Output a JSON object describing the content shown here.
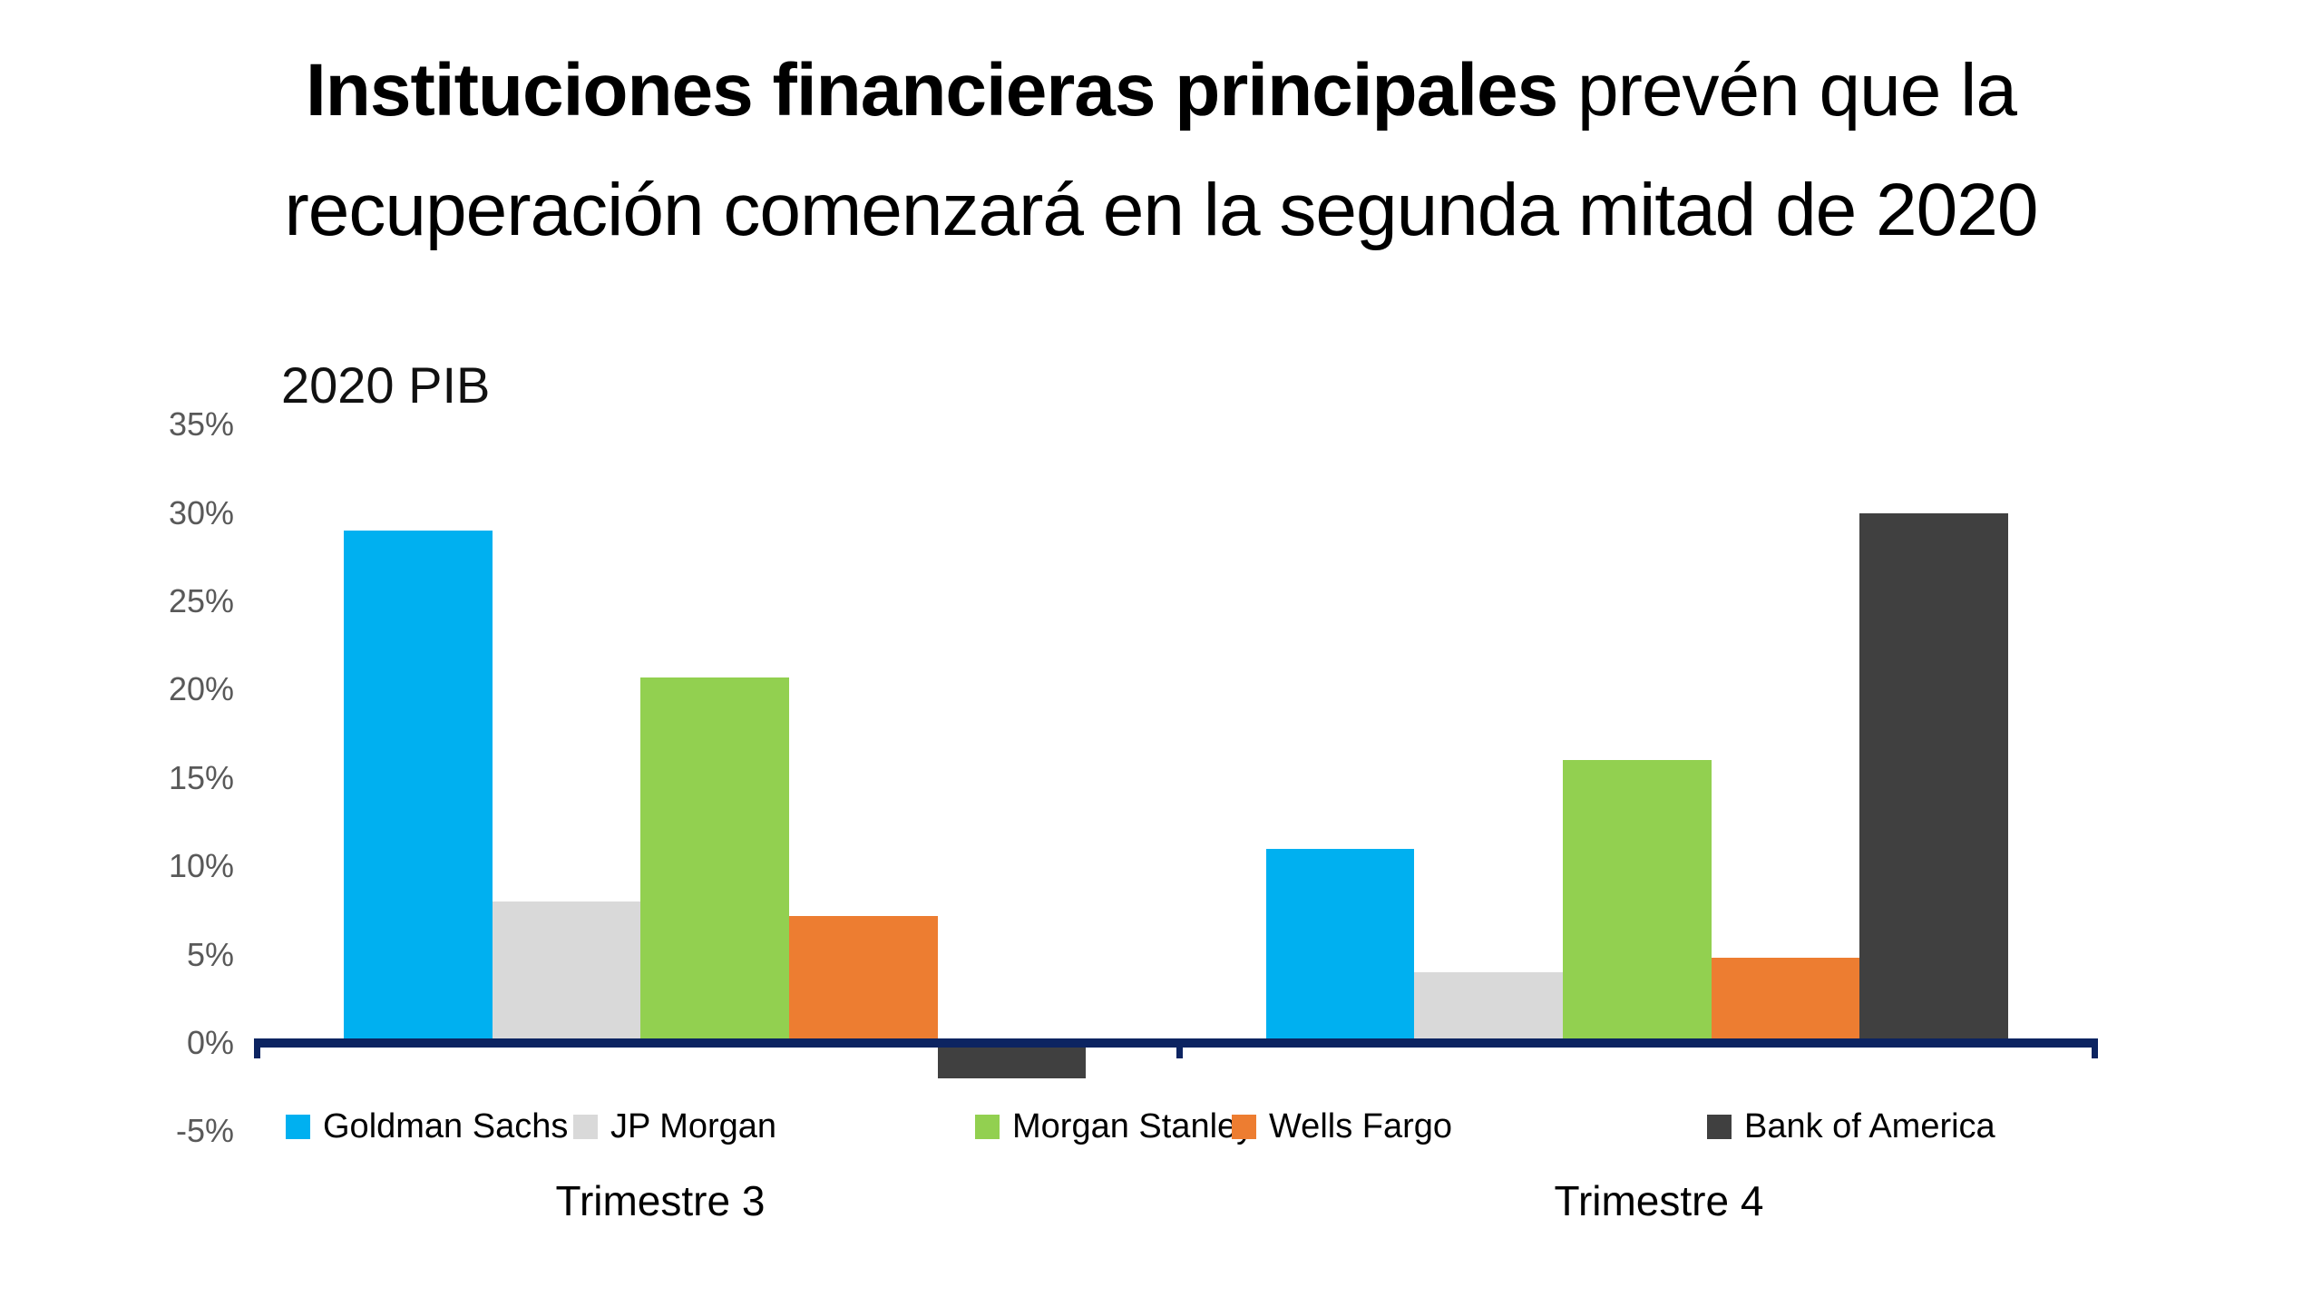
{
  "title": {
    "bold": "Instituciones financieras principales",
    "regular_line1": " prevén que la",
    "line2": "recuperación comenzará en la segunda mitad de 2020"
  },
  "chart_data": {
    "type": "bar",
    "title": "2020 PIB",
    "categories": [
      "Trimestre 3",
      "Trimestre 4"
    ],
    "series": [
      {
        "name": "Goldman Sachs",
        "color": "#00B0F0",
        "values": [
          29,
          11
        ]
      },
      {
        "name": "JP Morgan",
        "color": "#D9D9D9",
        "values": [
          8,
          4
        ]
      },
      {
        "name": "Morgan Stanley",
        "color": "#92D050",
        "values": [
          20.7,
          16
        ]
      },
      {
        "name": "Wells Fargo",
        "color": "#ED7D31",
        "values": [
          7.2,
          4.8
        ]
      },
      {
        "name": "Bank of America",
        "color": "#404040",
        "values": [
          -2,
          30
        ]
      }
    ],
    "xlabel": "",
    "ylabel": "",
    "ylim": [
      -5,
      35
    ],
    "y_tick_values": [
      35,
      30,
      25,
      20,
      15,
      10,
      5,
      0,
      -5
    ],
    "y_tick_labels": [
      "35%",
      "30%",
      "25%",
      "20%",
      "15%",
      "10%",
      "5%",
      "0%",
      "-5%"
    ],
    "grid": false,
    "legend_position": "bottom",
    "axis_color": "#0C2461",
    "tick_label_color": "#595959",
    "background_color": "#FFFFFF"
  }
}
